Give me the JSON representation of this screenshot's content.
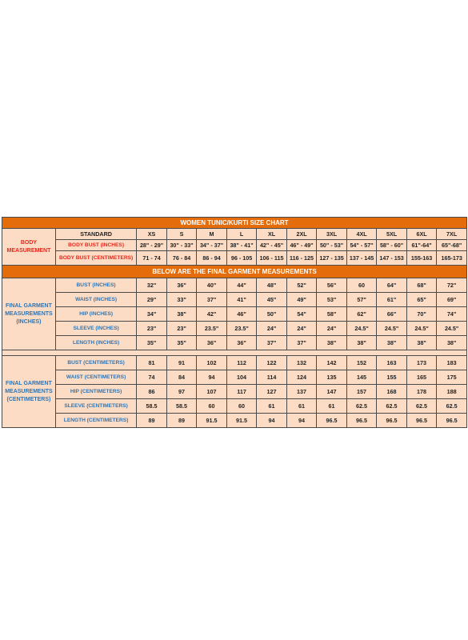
{
  "title": "WOMEN TUNIC/KURTI SIZE CHART",
  "standard_label": "STANDARD",
  "sizes": [
    "XS",
    "S",
    "M",
    "L",
    "XL",
    "2XL",
    "3XL",
    "4XL",
    "5XL",
    "6XL",
    "7XL"
  ],
  "body_measurement": {
    "group_label": "BODY MEASUREMENT",
    "rows": [
      {
        "label": "BODY BUST (INCHES)",
        "values": [
          "28\" - 29\"",
          "30\" - 33\"",
          "34\" - 37\"",
          "38\" - 41\"",
          "42\" - 45\"",
          "46\" - 49\"",
          "50\" - 53\"",
          "54\" - 57\"",
          "58\" - 60\"",
          "61\"-64\"",
          "65\"-68\""
        ]
      },
      {
        "label": "BODY BUST (CENTIMETERS)",
        "values": [
          "71 - 74",
          "76 - 84",
          "86 - 94",
          "96 - 105",
          "106 - 115",
          "116 - 125",
          "127 - 135",
          "137 - 145",
          "147 - 153",
          "155-163",
          "165-173"
        ]
      }
    ]
  },
  "final_heading": "BELOW ARE THE FINAL GARMENT MEASUREMENTS",
  "garment_inches": {
    "group_label": "FINAL GARMENT MEASUREMENTS (INCHES)",
    "rows": [
      {
        "label": "BUST (INCHES)",
        "values": [
          "32\"",
          "36\"",
          "40\"",
          "44\"",
          "48\"",
          "52\"",
          "56\"",
          "60",
          "64\"",
          "68\"",
          "72\""
        ]
      },
      {
        "label": "WAIST (INCHES)",
        "values": [
          "29\"",
          "33\"",
          "37\"",
          "41\"",
          "45\"",
          "49\"",
          "53\"",
          "57\"",
          "61\"",
          "65\"",
          "69\""
        ]
      },
      {
        "label": "HIP (INCHES)",
        "values": [
          "34\"",
          "38\"",
          "42\"",
          "46\"",
          "50\"",
          "54\"",
          "58\"",
          "62\"",
          "66\"",
          "70\"",
          "74\""
        ]
      },
      {
        "label": "SLEEVE (INCHES)",
        "values": [
          "23\"",
          "23\"",
          "23.5\"",
          "23.5\"",
          "24\"",
          "24\"",
          "24\"",
          "24.5\"",
          "24.5\"",
          "24.5\"",
          "24.5\""
        ]
      },
      {
        "label": "LENGTH (INCHES)",
        "values": [
          "35\"",
          "35\"",
          "36\"",
          "36\"",
          "37\"",
          "37\"",
          "38\"",
          "38\"",
          "38\"",
          "38\"",
          "38\""
        ]
      }
    ]
  },
  "garment_cm": {
    "group_label": "FINAL GARMENT MEASUREMENTS (CENTIMETERS)",
    "rows": [
      {
        "label": "BUST (CENTIMETERS)",
        "values": [
          "81",
          "91",
          "102",
          "112",
          "122",
          "132",
          "142",
          "152",
          "163",
          "173",
          "183"
        ]
      },
      {
        "label": "WAIST (CENTIMETERS)",
        "values": [
          "74",
          "84",
          "94",
          "104",
          "114",
          "124",
          "135",
          "145",
          "155",
          "165",
          "175"
        ]
      },
      {
        "label": "HIP (CENTIMETERS)",
        "values": [
          "86",
          "97",
          "107",
          "117",
          "127",
          "137",
          "147",
          "157",
          "168",
          "178",
          "188"
        ]
      },
      {
        "label": "SLEEVE (CENTIMETERS)",
        "values": [
          "58.5",
          "58.5",
          "60",
          "60",
          "61",
          "61",
          "61",
          "62.5",
          "62.5",
          "62.5",
          "62.5"
        ]
      },
      {
        "label": "LENGTH (CENTIMETERS)",
        "values": [
          "89",
          "89",
          "91.5",
          "91.5",
          "94",
          "94",
          "96.5",
          "96.5",
          "96.5",
          "96.5",
          "96.5"
        ]
      }
    ]
  },
  "colors": {
    "header_orange": "#e46c0a",
    "cell_peach": "#fcdcc4",
    "body_label_red": "#e8261b",
    "garment_label_blue": "#2e75b6"
  }
}
